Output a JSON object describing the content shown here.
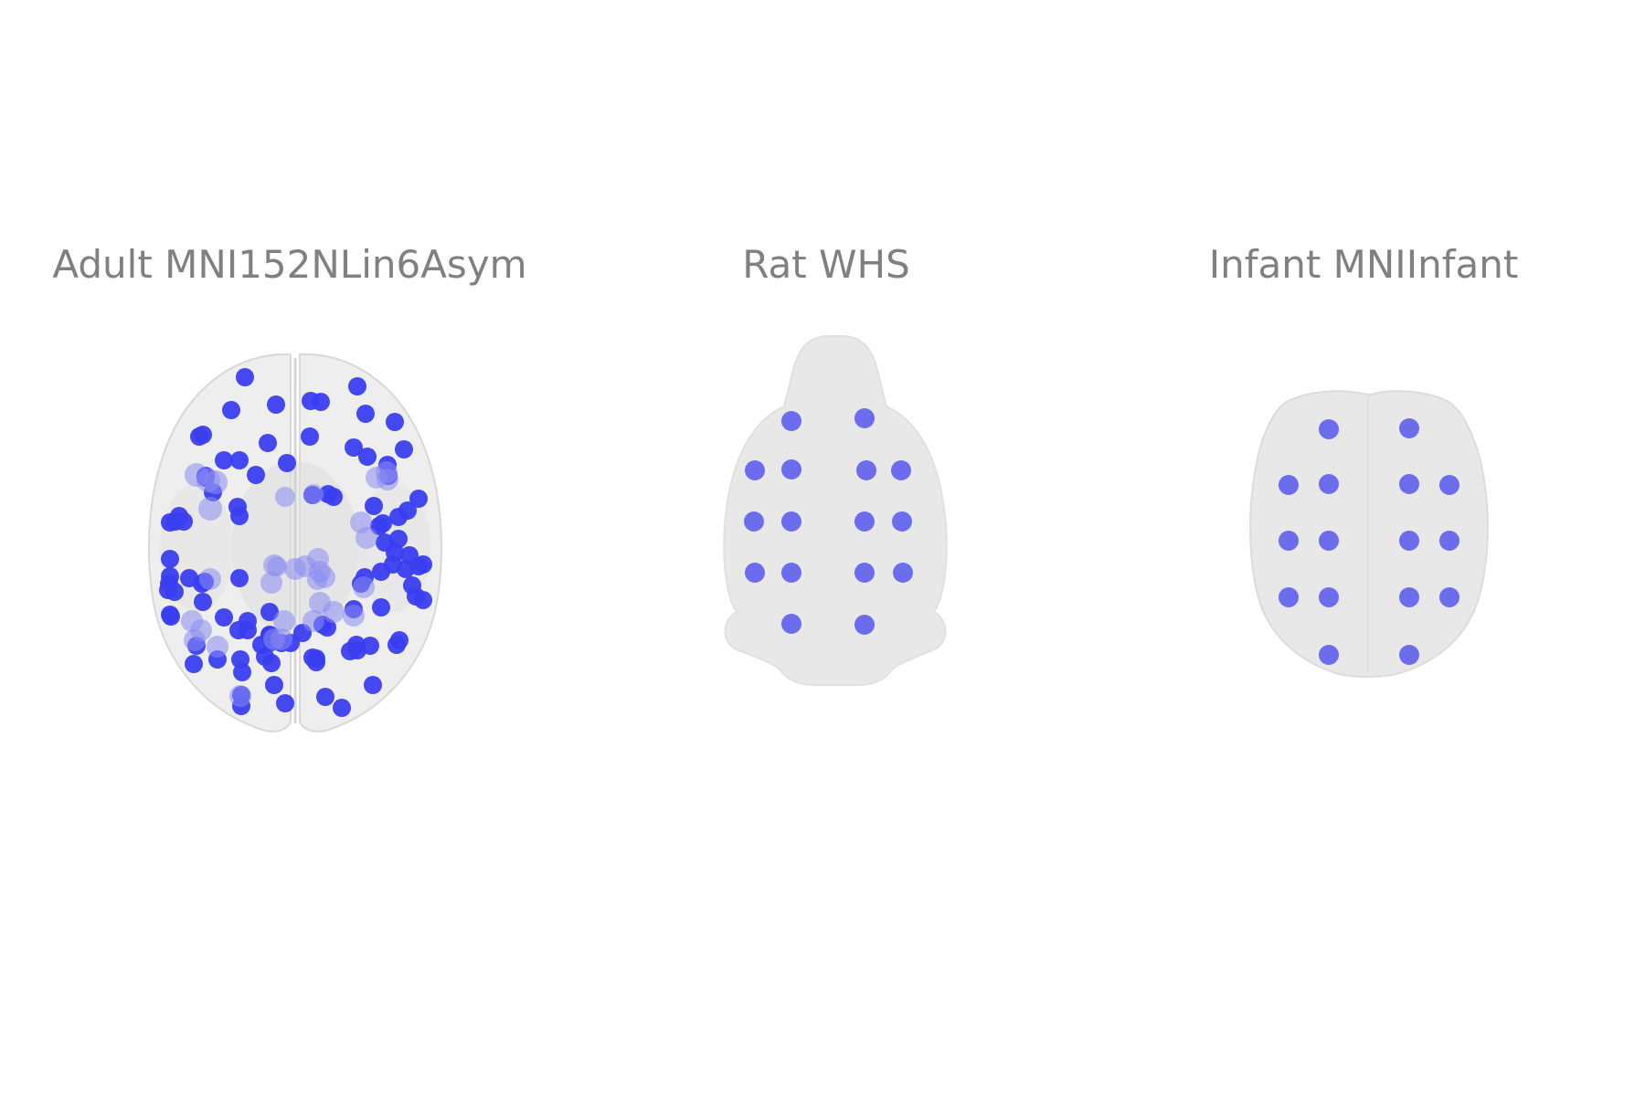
{
  "panels": [
    {
      "id": "adult",
      "title": "Adult MNI152NLin6Asym"
    },
    {
      "id": "rat",
      "title": "Rat WHS"
    },
    {
      "id": "infant",
      "title": "Infant MNIInfant"
    }
  ],
  "colors": {
    "background": "#ffffff",
    "title": "#808080",
    "brain_fill": "#e8e8e8",
    "brain_outline": "#d6d6d6",
    "adult_node": "#3a3ef0",
    "adult_node_faded": "#8a8cf0",
    "rat_node": "#6466ec",
    "infant_node": "#6466ec"
  }
}
